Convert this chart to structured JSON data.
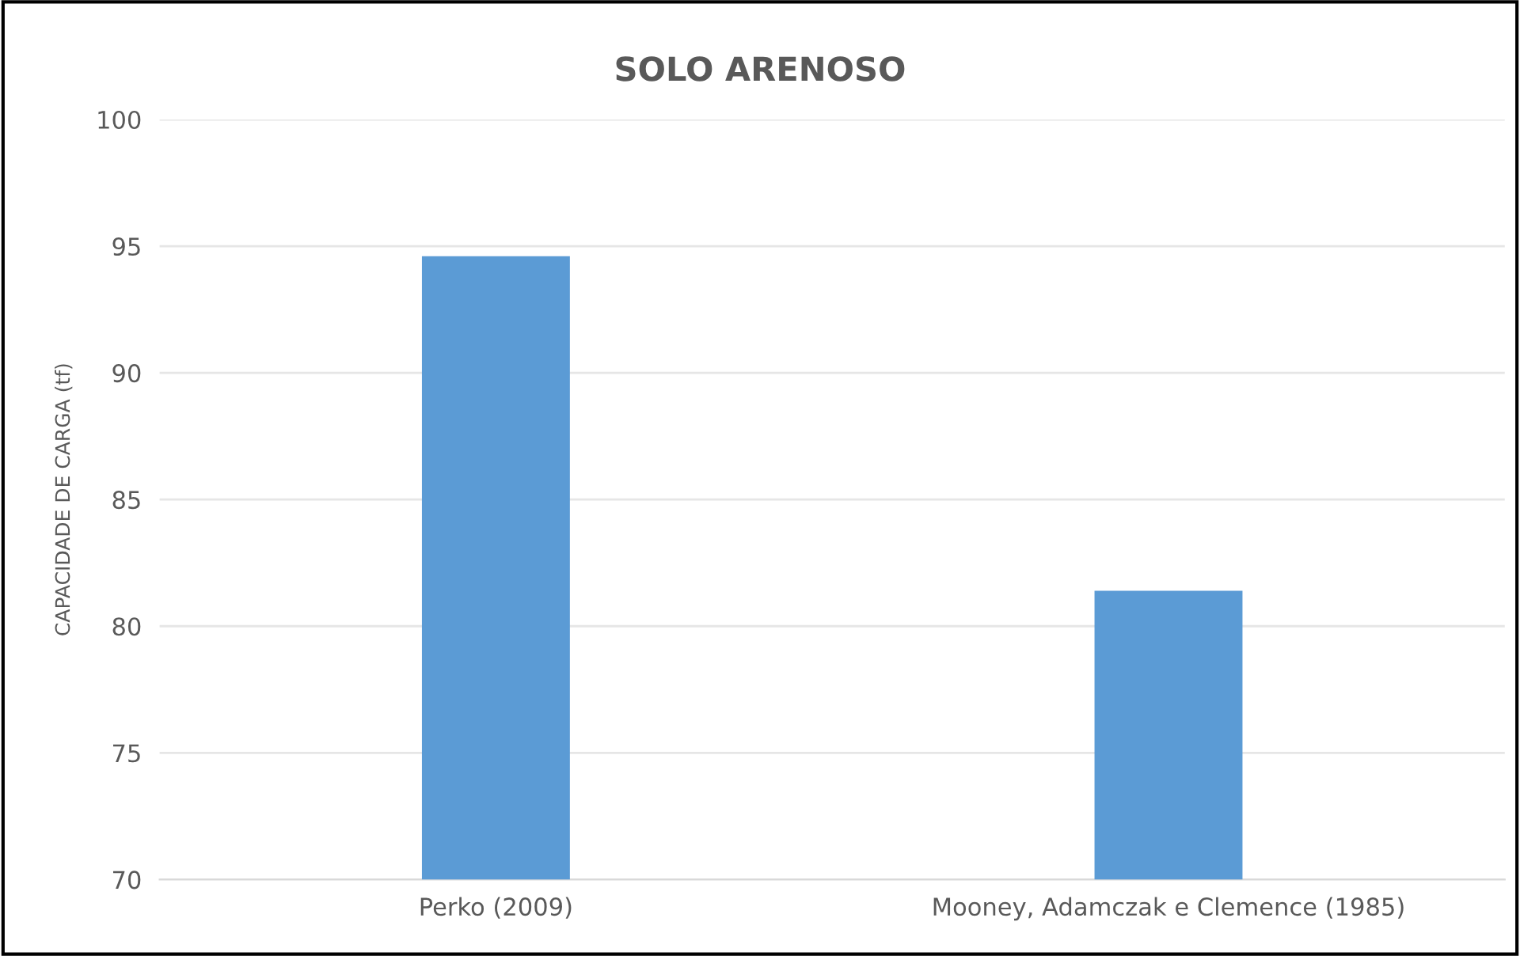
{
  "chart_data": {
    "type": "bar",
    "title": "SOLO ARENOSO",
    "ylabel": "CAPACIDADE DE CARGA (tf)",
    "categories": [
      "Perko (2009)",
      "Mooney, Adamczak e Clemence (1985)"
    ],
    "values": [
      94.6,
      81.4
    ],
    "color": "#5b9bd5",
    "ylim": [
      70,
      100
    ],
    "yticks": [
      70,
      75,
      80,
      85,
      90,
      95,
      100
    ],
    "grid": "y"
  }
}
